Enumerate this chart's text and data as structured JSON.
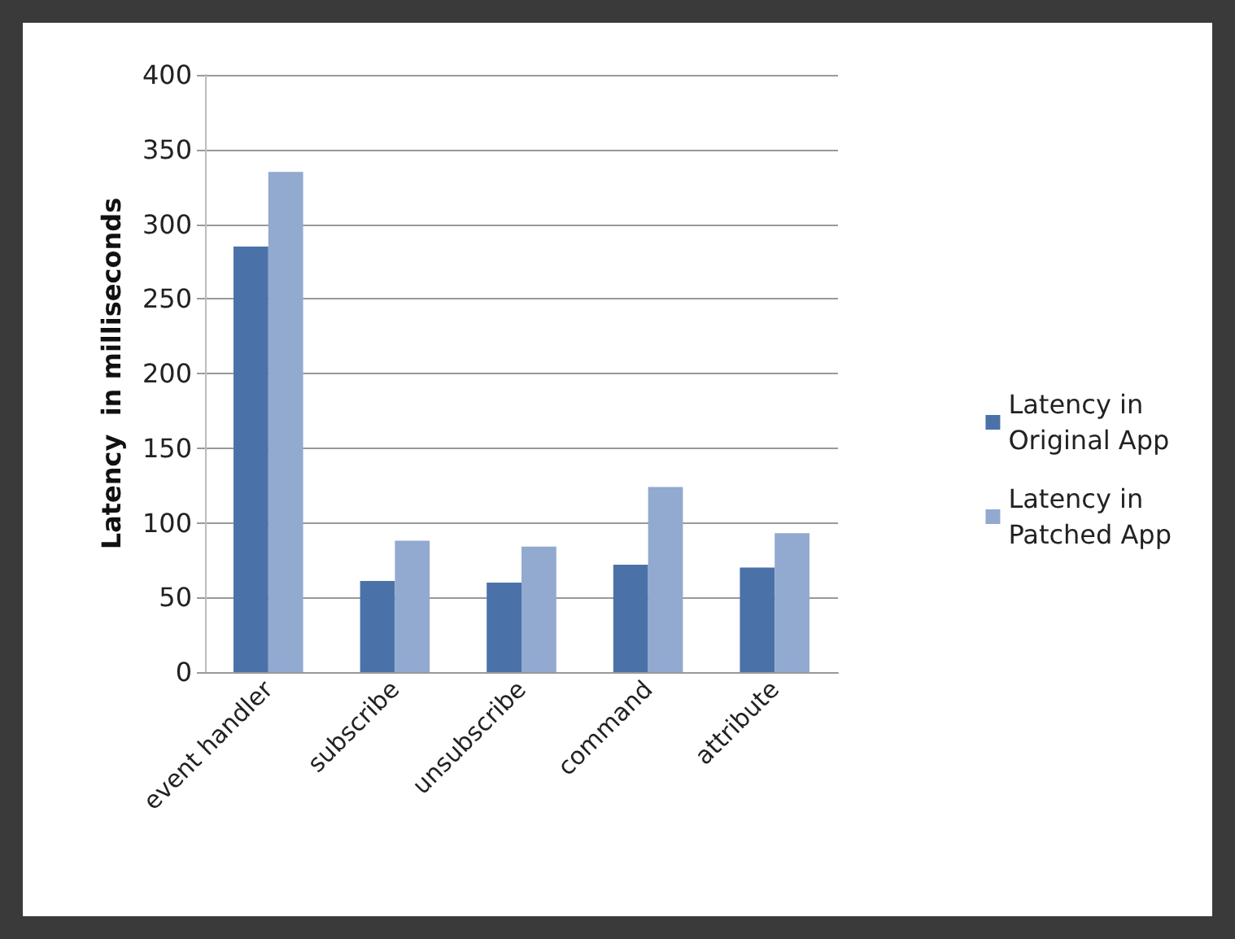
{
  "chart_data": {
    "type": "bar",
    "ylabel": "Latency  in milliseconds",
    "categories": [
      "event handler",
      "subscribe",
      "unsubscribe",
      "command",
      "attribute"
    ],
    "series": [
      {
        "name": "Latency in\nOriginal App",
        "color": "#4a72a8",
        "values": [
          285,
          61,
          60,
          72,
          70
        ]
      },
      {
        "name": "Latency in\nPatched App",
        "color": "#92a9d0",
        "values": [
          335,
          88,
          84,
          124,
          93
        ]
      }
    ],
    "ylim": [
      0,
      400
    ],
    "yticks": [
      0,
      50,
      100,
      150,
      200,
      250,
      300,
      350,
      400
    ],
    "grid": "y",
    "legend": "right"
  }
}
